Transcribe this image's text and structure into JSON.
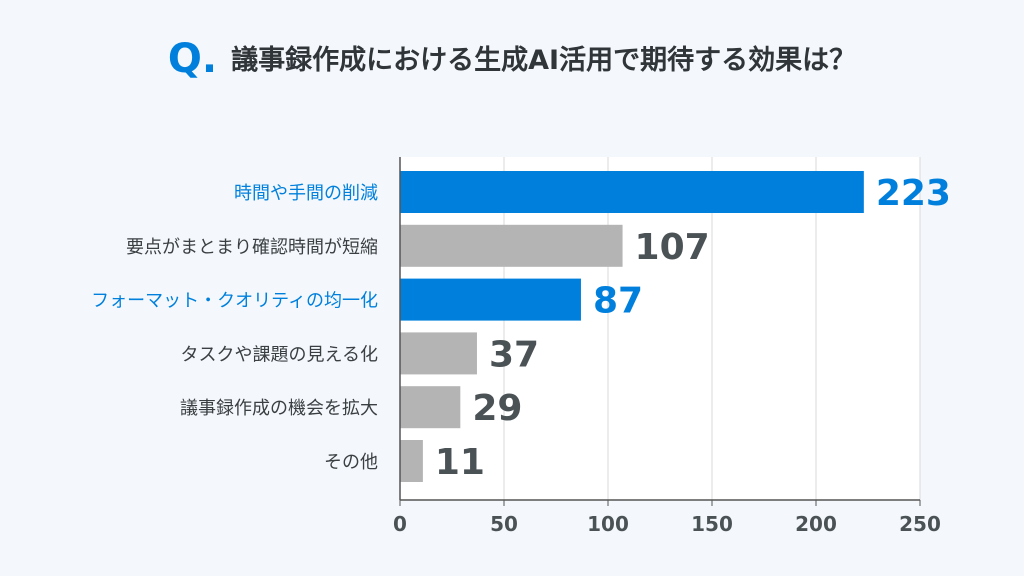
{
  "chart_data": {
    "type": "bar",
    "orientation": "horizontal",
    "title_prefix": "Q.",
    "title": "議事録作成における生成AI活用で期待する効果は？",
    "categories": [
      "時間や手間の削減",
      "要点がまとまり確認時間が短縮",
      "フォーマット・クオリティの均一化",
      "タスクや課題の見える化",
      "議事録作成の機会を拡大",
      "その他"
    ],
    "values": [
      223,
      107,
      87,
      37,
      29,
      11
    ],
    "highlighted": [
      true,
      false,
      true,
      false,
      false,
      false
    ],
    "xlim": [
      0,
      250
    ],
    "xticks": [
      0,
      50,
      100,
      150,
      200,
      250
    ],
    "grid": true,
    "colors": {
      "highlight": "#0080dc",
      "normal": "#b4b4b4",
      "value_text": "#4a5256",
      "label_text": "#3a3f42"
    }
  }
}
